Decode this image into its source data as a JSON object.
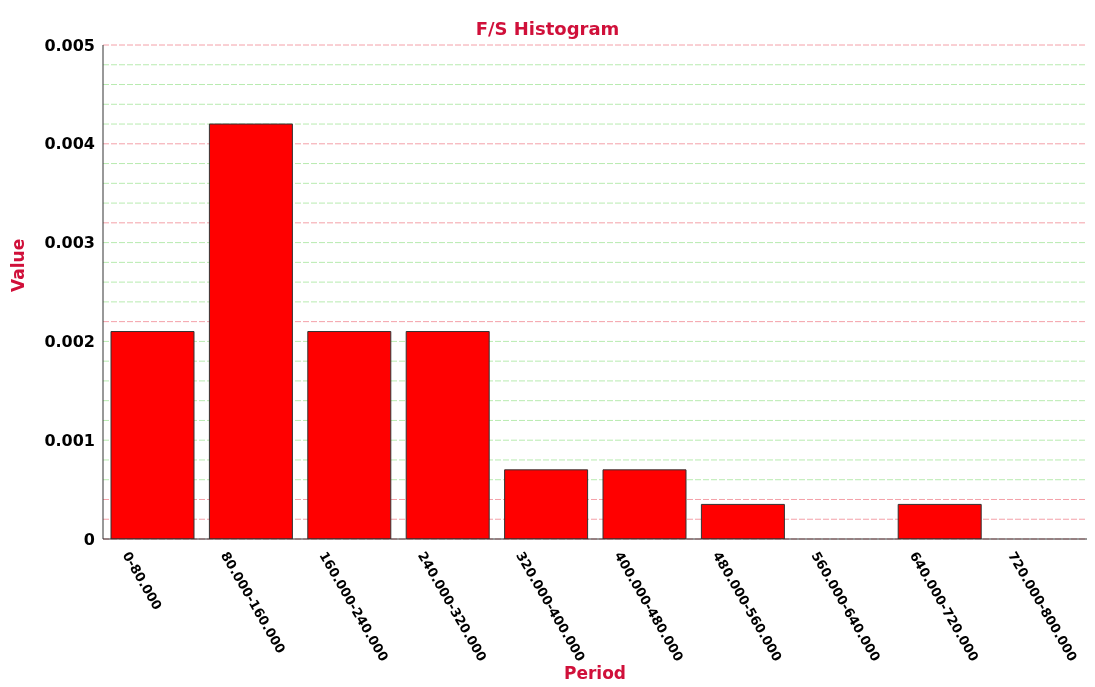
{
  "chart_data": {
    "type": "bar",
    "title": "F/S Histogram",
    "xlabel": "Period",
    "ylabel": "Value",
    "categories": [
      "0-80.000",
      "80.000-160.000",
      "160.000-240.000",
      "240.000-320.000",
      "320.000-400.000",
      "400.000-480.000",
      "480.000-560.000",
      "560.000-640.000",
      "640.000-720.000",
      "720.000-800.000"
    ],
    "values": [
      0.0021,
      0.0042,
      0.0021,
      0.0021,
      0.0007,
      0.0007,
      0.00035,
      0,
      0.00035,
      0
    ],
    "color": "#ff0000",
    "ylim": [
      0,
      0.005
    ],
    "yticks": [
      0,
      {
        "value": 0.0002,
        "label": null
      },
      {
        "value": 0.0004,
        "label": null
      },
      {
        "value": 0.0006,
        "label": null
      },
      {
        "value": 0.0008,
        "label": null
      },
      0.001,
      {
        "value": 0.0012,
        "label": null
      },
      {
        "value": 0.0014,
        "label": null
      },
      {
        "value": 0.0016,
        "label": null
      },
      {
        "value": 0.0018,
        "label": null
      },
      0.002,
      {
        "value": 0.0022,
        "label": null
      },
      {
        "value": 0.0024,
        "label": null
      },
      {
        "value": 0.0026,
        "label": null
      },
      {
        "value": 0.0028,
        "label": null
      },
      0.003,
      {
        "value": 0.0032,
        "label": null
      },
      {
        "value": 0.0034,
        "label": null
      },
      {
        "value": 0.0036,
        "label": null
      },
      {
        "value": 0.0038,
        "label": null
      },
      0.004,
      {
        "value": 0.0042,
        "label": null
      },
      {
        "value": 0.0044,
        "label": null
      },
      {
        "value": 0.0046,
        "label": null
      },
      {
        "value": 0.0048,
        "label": null
      },
      0.005
    ],
    "grid": true
  }
}
